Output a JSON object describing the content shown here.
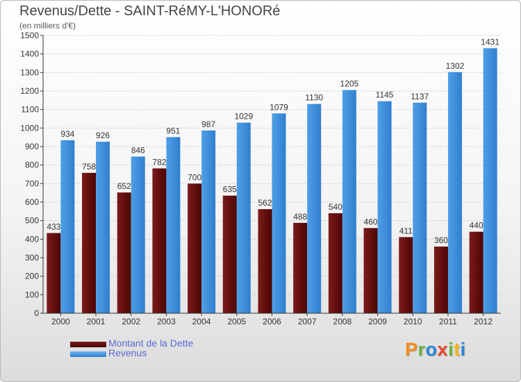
{
  "title": "Revenus/Dette - SAINT-RéMY-L'HONORé",
  "subtitle": "(en milliers d'€)",
  "colors": {
    "dette": "#7b1a1a",
    "dette_dark": "#4d0505",
    "revenus": "#4f9fe6",
    "revenus_dark": "#2f7fcf",
    "grid": "#cccccc",
    "axis": "#333333",
    "text": "#333333"
  },
  "logo": {
    "text": "Proxiti",
    "letters": [
      {
        "char": "P",
        "color": "#f28c1c"
      },
      {
        "char": "r",
        "color": "#6cb33f"
      },
      {
        "char": "o",
        "color": "#2a86d6"
      },
      {
        "char": "x",
        "color": "#e8452c"
      },
      {
        "char": "i",
        "color": "#6cb33f"
      },
      {
        "char": "t",
        "color": "#f2b51c"
      },
      {
        "char": "i",
        "color": "#2a86d6"
      }
    ]
  },
  "chart_data": {
    "type": "bar",
    "categories": [
      "2000",
      "2001",
      "2002",
      "2003",
      "2004",
      "2005",
      "2006",
      "2007",
      "2008",
      "2009",
      "2010",
      "2011",
      "2012"
    ],
    "series": [
      {
        "name": "Montant de la Dette",
        "values": [
          433,
          758,
          652,
          782,
          700,
          635,
          562,
          488,
          540,
          460,
          411,
          360,
          440
        ]
      },
      {
        "name": "Revenus",
        "values": [
          934,
          926,
          846,
          951,
          987,
          1029,
          1079,
          1130,
          1205,
          1145,
          1137,
          1302,
          1431
        ]
      }
    ],
    "yticks": [
      0,
      100,
      200,
      300,
      400,
      500,
      600,
      700,
      800,
      900,
      1000,
      1100,
      1200,
      1300,
      1400,
      1500
    ],
    "ylim": [
      0,
      1500
    ],
    "grid": true,
    "legend": "bottom-left"
  }
}
